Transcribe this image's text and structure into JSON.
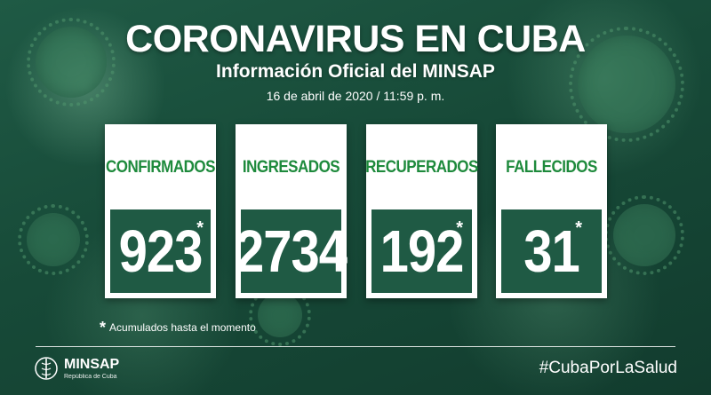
{
  "header": {
    "title": "CORONAVIRUS EN CUBA",
    "subtitle": "Información Oficial del MINSAP",
    "date": "16 de abril de 2020 / 11:59 p. m."
  },
  "cards": [
    {
      "label": "CONFIRMADOS",
      "value": "923",
      "asterisk": "*"
    },
    {
      "label": "INGRESADOS",
      "value": "2734",
      "asterisk": ""
    },
    {
      "label": "RECUPERADOS",
      "value": "192",
      "asterisk": "*"
    },
    {
      "label": "FALLECIDOS",
      "value": "31",
      "asterisk": "*"
    }
  ],
  "footnote": {
    "symbol": "*",
    "text": "Acumulados hasta el momento"
  },
  "footer": {
    "logo_name": "MINSAP",
    "logo_subtitle": "República de Cuba",
    "hashtag": "#CubaPorLaSalud"
  },
  "colors": {
    "label_green": "#1e8a3c",
    "value_bg": "#1f5a44",
    "background": "#174a38"
  }
}
